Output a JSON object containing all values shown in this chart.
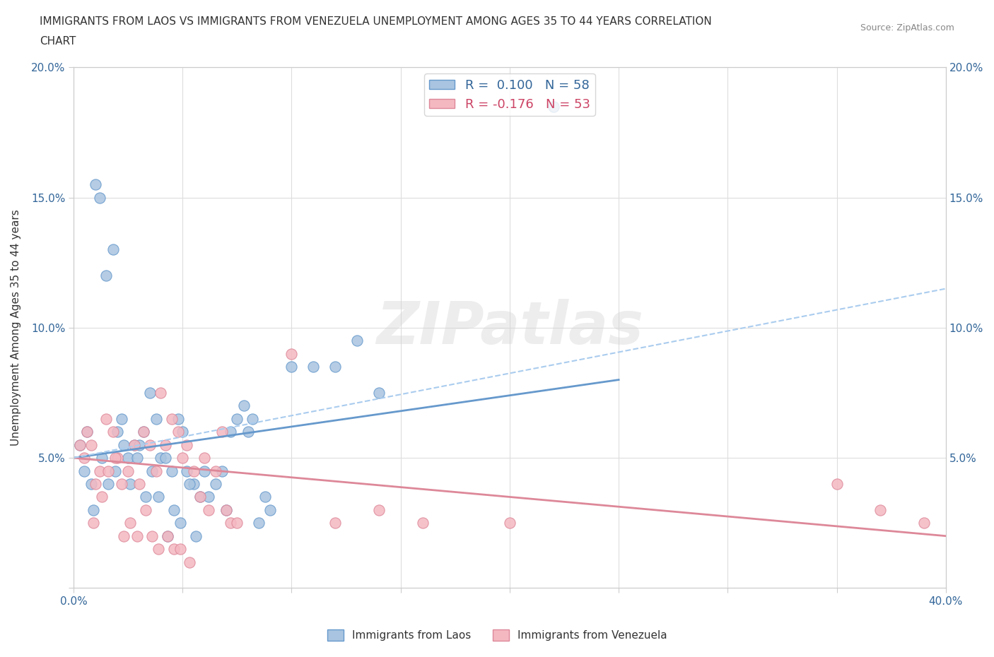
{
  "title_line1": "IMMIGRANTS FROM LAOS VS IMMIGRANTS FROM VENEZUELA UNEMPLOYMENT AMONG AGES 35 TO 44 YEARS CORRELATION",
  "title_line2": "CHART",
  "source_text": "Source: ZipAtlas.com",
  "ylabel": "Unemployment Among Ages 35 to 44 years",
  "xlim": [
    0,
    0.4
  ],
  "ylim": [
    0,
    0.2
  ],
  "xticks": [
    0.0,
    0.05,
    0.1,
    0.15,
    0.2,
    0.25,
    0.3,
    0.35,
    0.4
  ],
  "yticks": [
    0.0,
    0.05,
    0.1,
    0.15,
    0.2
  ],
  "xtick_labels": [
    "0.0%",
    "",
    "",
    "",
    "",
    "",
    "",
    "",
    "40.0%"
  ],
  "ytick_labels": [
    "",
    "5.0%",
    "10.0%",
    "15.0%",
    "20.0%"
  ],
  "laos_R": 0.1,
  "laos_N": 58,
  "venezuela_R": -0.176,
  "venezuela_N": 53,
  "laos_color": "#a8c4e0",
  "laos_edge_color": "#6699cc",
  "venezuela_color": "#f4b8c1",
  "venezuela_edge_color": "#dd8899",
  "laos_scatter_x": [
    0.005,
    0.008,
    0.01,
    0.012,
    0.015,
    0.018,
    0.02,
    0.022,
    0.025,
    0.028,
    0.03,
    0.032,
    0.035,
    0.038,
    0.04,
    0.042,
    0.045,
    0.048,
    0.05,
    0.052,
    0.055,
    0.058,
    0.06,
    0.062,
    0.065,
    0.068,
    0.07,
    0.072,
    0.075,
    0.078,
    0.08,
    0.082,
    0.085,
    0.088,
    0.09,
    0.1,
    0.11,
    0.12,
    0.13,
    0.14,
    0.003,
    0.006,
    0.009,
    0.013,
    0.016,
    0.019,
    0.023,
    0.026,
    0.029,
    0.033,
    0.036,
    0.039,
    0.043,
    0.046,
    0.049,
    0.053,
    0.056,
    0.22
  ],
  "laos_scatter_y": [
    0.045,
    0.04,
    0.155,
    0.15,
    0.12,
    0.13,
    0.06,
    0.065,
    0.05,
    0.055,
    0.055,
    0.06,
    0.075,
    0.065,
    0.05,
    0.05,
    0.045,
    0.065,
    0.06,
    0.045,
    0.04,
    0.035,
    0.045,
    0.035,
    0.04,
    0.045,
    0.03,
    0.06,
    0.065,
    0.07,
    0.06,
    0.065,
    0.025,
    0.035,
    0.03,
    0.085,
    0.085,
    0.085,
    0.095,
    0.075,
    0.055,
    0.06,
    0.03,
    0.05,
    0.04,
    0.045,
    0.055,
    0.04,
    0.05,
    0.035,
    0.045,
    0.035,
    0.02,
    0.03,
    0.025,
    0.04,
    0.02,
    0.185
  ],
  "venezuela_scatter_x": [
    0.005,
    0.008,
    0.01,
    0.012,
    0.015,
    0.018,
    0.02,
    0.022,
    0.025,
    0.028,
    0.03,
    0.032,
    0.035,
    0.038,
    0.04,
    0.042,
    0.045,
    0.048,
    0.05,
    0.052,
    0.055,
    0.058,
    0.06,
    0.062,
    0.065,
    0.068,
    0.07,
    0.072,
    0.075,
    0.1,
    0.12,
    0.14,
    0.16,
    0.2,
    0.003,
    0.006,
    0.009,
    0.013,
    0.016,
    0.019,
    0.023,
    0.026,
    0.029,
    0.033,
    0.036,
    0.039,
    0.043,
    0.046,
    0.049,
    0.053,
    0.35,
    0.37,
    0.39
  ],
  "venezuela_scatter_y": [
    0.05,
    0.055,
    0.04,
    0.045,
    0.065,
    0.06,
    0.05,
    0.04,
    0.045,
    0.055,
    0.04,
    0.06,
    0.055,
    0.045,
    0.075,
    0.055,
    0.065,
    0.06,
    0.05,
    0.055,
    0.045,
    0.035,
    0.05,
    0.03,
    0.045,
    0.06,
    0.03,
    0.025,
    0.025,
    0.09,
    0.025,
    0.03,
    0.025,
    0.025,
    0.055,
    0.06,
    0.025,
    0.035,
    0.045,
    0.05,
    0.02,
    0.025,
    0.02,
    0.03,
    0.02,
    0.015,
    0.02,
    0.015,
    0.015,
    0.01,
    0.04,
    0.03,
    0.025
  ],
  "laos_trend_x": [
    0.0,
    0.25
  ],
  "laos_trend_y_start": 0.05,
  "laos_trend_y_end": 0.08,
  "venezuela_trend_x": [
    0.0,
    0.4
  ],
  "venezuela_trend_y_start": 0.05,
  "venezuela_trend_y_end": 0.02,
  "dashed_trend_x": [
    0.0,
    0.4
  ],
  "dashed_trend_y_start": 0.05,
  "dashed_trend_y_end": 0.115,
  "watermark_text": "ZIPatlas",
  "background_color": "#ffffff",
  "grid_color": "#dddddd",
  "legend_label_laos": "Immigrants from Laos",
  "legend_label_venezuela": "Immigrants from Venezuela"
}
